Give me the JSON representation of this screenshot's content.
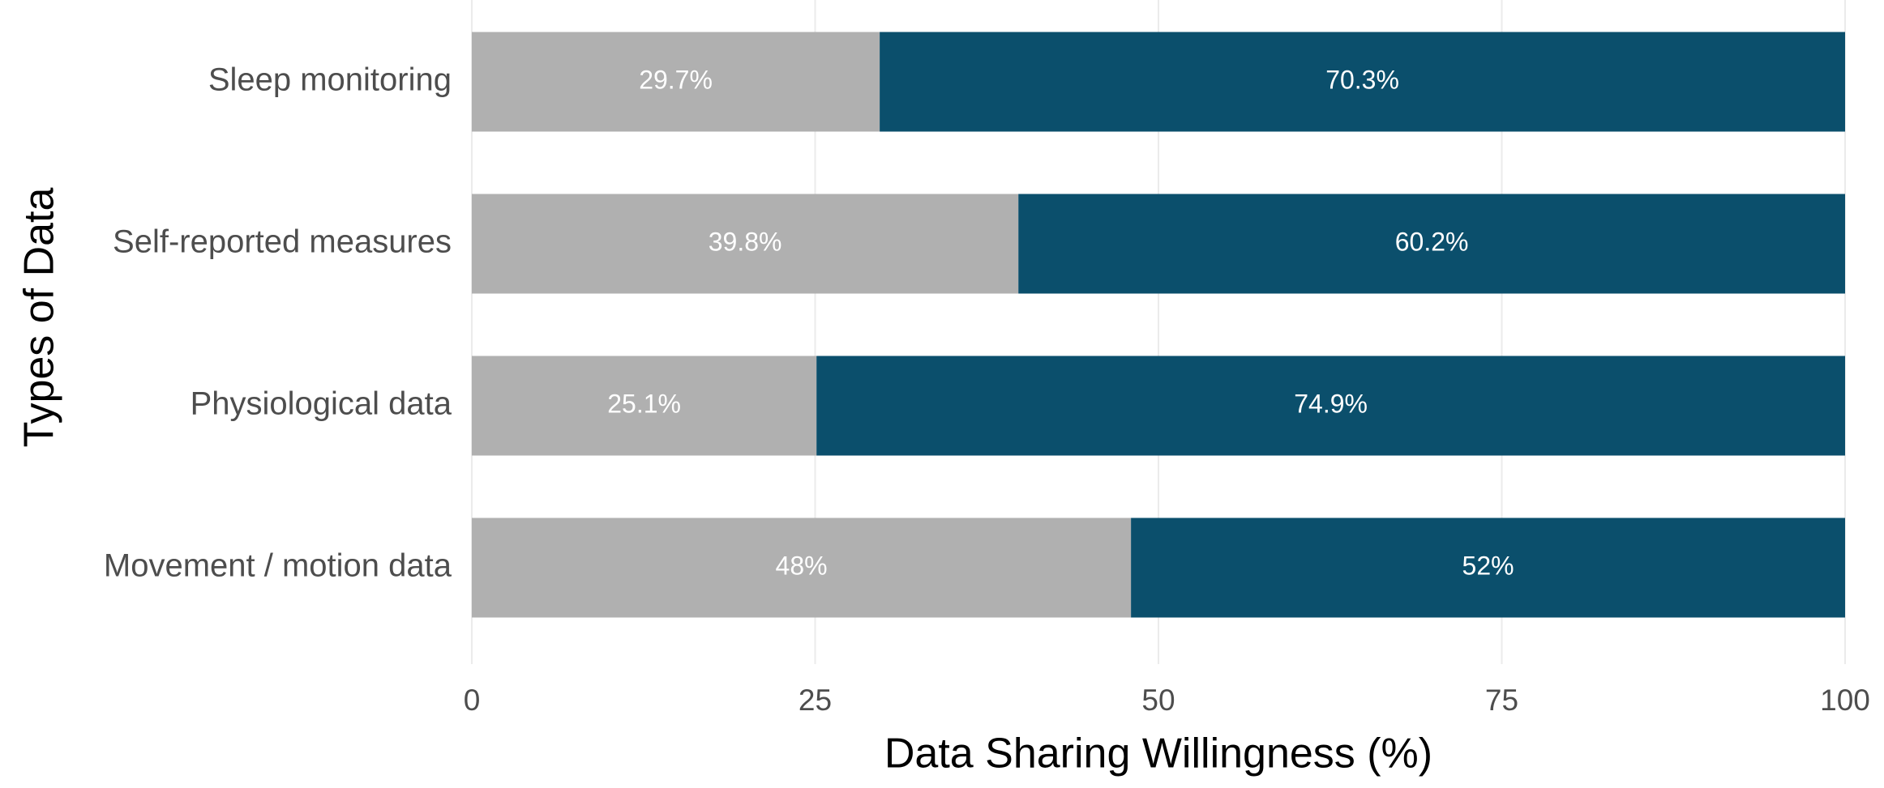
{
  "chart_data": {
    "type": "stacked_bar_horizontal",
    "x_label": "Data Sharing Willingness (%)",
    "y_label": "Types of Data",
    "categories": [
      "Sleep monitoring",
      "Self-reported measures",
      "Physiological data",
      "Movement / motion data"
    ],
    "series": [
      {
        "color": "#b0b0b0",
        "values": [
          29.7,
          39.8,
          25.1,
          48
        ],
        "value_labels": [
          "29.7%",
          "39.8%",
          "25.1%",
          "48%"
        ]
      },
      {
        "color": "#0b4f6c",
        "values": [
          70.3,
          60.2,
          74.9,
          52
        ],
        "value_labels": [
          "70.3%",
          "60.2%",
          "74.9%",
          "52%"
        ]
      }
    ],
    "xlim": [
      0,
      100
    ],
    "xticks": [
      0,
      25,
      50,
      75,
      100
    ],
    "grid": true
  }
}
